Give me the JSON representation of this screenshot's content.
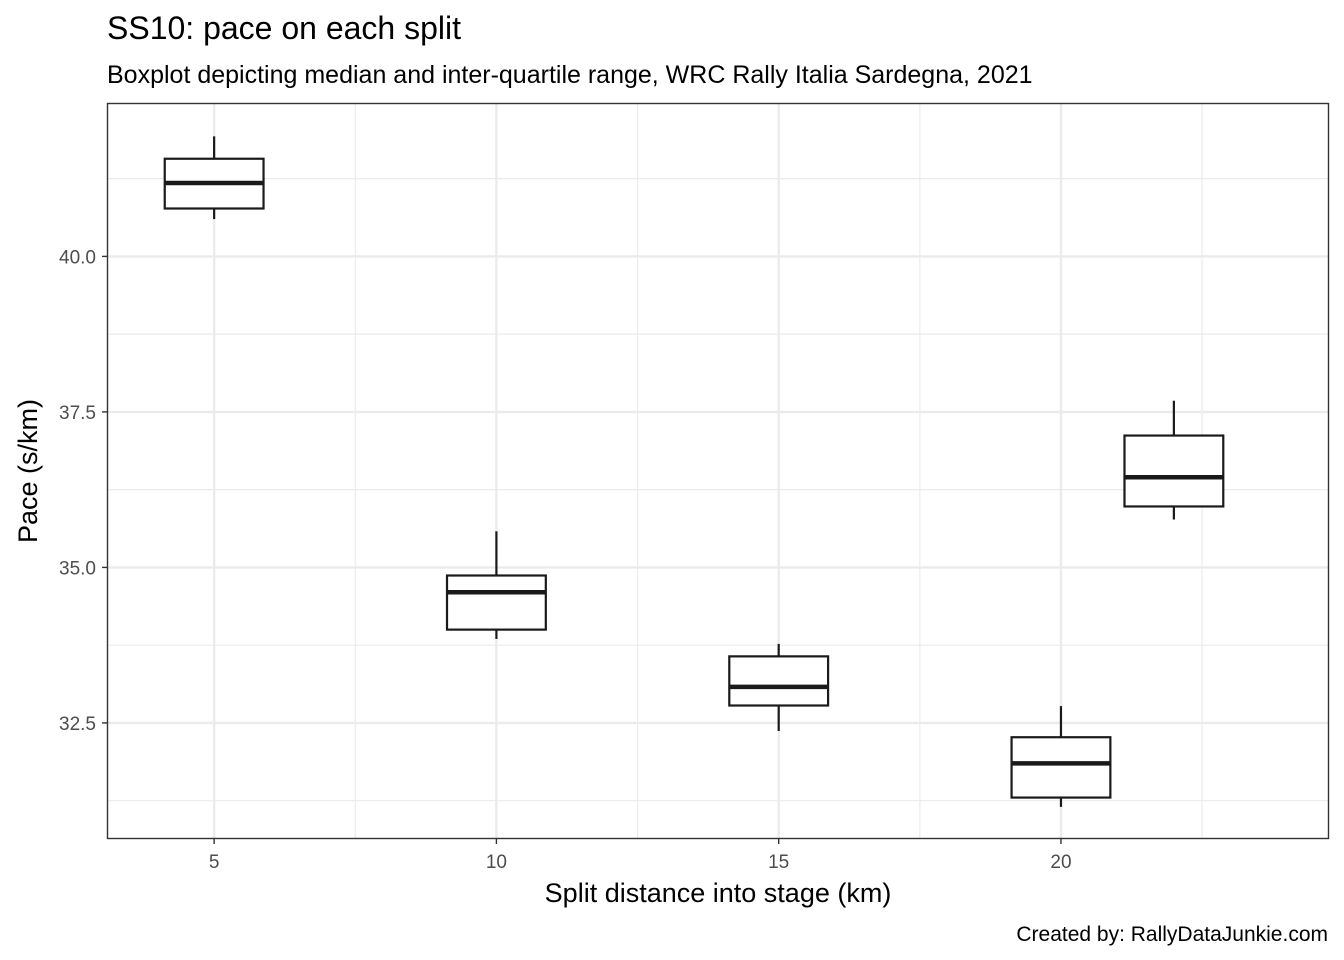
{
  "chart_data": {
    "type": "boxplot",
    "title": "SS10: pace on each split",
    "subtitle": "Boxplot depicting median and inter-quartile range, WRC Rally Italia Sardegna, 2021",
    "xlabel": "Split distance into stage (km)",
    "ylabel": "Pace (s/km)",
    "caption": "Created by: RallyDataJunkie.com",
    "xlim": [
      3.12,
      24.73
    ],
    "ylim": [
      30.65,
      42.45
    ],
    "x_ticks": [
      5,
      10,
      15,
      20
    ],
    "y_ticks": [
      32.5,
      35.0,
      37.5,
      40.0
    ],
    "x_tick_labels": [
      "5",
      "10",
      "15",
      "20"
    ],
    "y_tick_labels": [
      "32.5",
      "35.0",
      "37.5",
      "40.0"
    ],
    "box_width": 1.75,
    "boxes": [
      {
        "x": 5.0,
        "min": 40.6,
        "q1": 40.77,
        "median": 41.18,
        "q3": 41.57,
        "max": 41.93
      },
      {
        "x": 10.0,
        "min": 33.85,
        "q1": 34.0,
        "median": 34.6,
        "q3": 34.87,
        "max": 35.58
      },
      {
        "x": 15.0,
        "min": 32.37,
        "q1": 32.78,
        "median": 33.08,
        "q3": 33.57,
        "max": 33.77
      },
      {
        "x": 20.0,
        "min": 31.15,
        "q1": 31.3,
        "median": 31.85,
        "q3": 32.27,
        "max": 32.77
      },
      {
        "x": 22.0,
        "min": 35.77,
        "q1": 35.98,
        "median": 36.45,
        "q3": 37.12,
        "max": 37.68
      }
    ],
    "grid": true,
    "legend": "none"
  }
}
